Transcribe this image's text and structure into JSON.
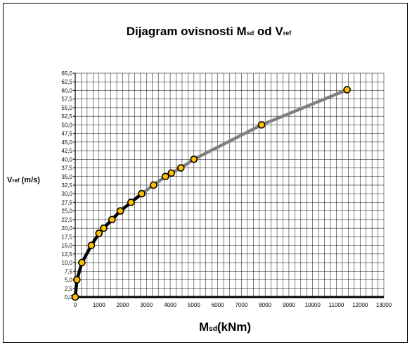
{
  "chart_data": {
    "type": "line",
    "title": {
      "prefix": "Dijagram ovisnosti M",
      "sub1": "sd",
      "middle": " od V",
      "sub2": "ref"
    },
    "xlabel": {
      "main": "M",
      "sub": "sd",
      "suffix": "(kNm)"
    },
    "ylabel": {
      "main": "V",
      "sub": "ref",
      "suffix": " (m/s)"
    },
    "xlim": [
      0,
      13000
    ],
    "ylim": [
      0,
      65
    ],
    "x_ticks": [
      "0",
      "1000",
      "2000",
      "3000",
      "4000",
      "5000",
      "6000",
      "7000",
      "8000",
      "9000",
      "10000",
      "11000",
      "12000",
      "13000"
    ],
    "y_ticks": [
      "0,0",
      "2,5",
      "5,0",
      "7,5",
      "10,0",
      "12,5",
      "15,0",
      "17,5",
      "20,0",
      "22,5",
      "25,0",
      "27,5",
      "30,0",
      "32,5",
      "35,0",
      "37,5",
      "40,0",
      "42,5",
      "45,0",
      "47,5",
      "50,0",
      "52,5",
      "55,0",
      "57,5",
      "60,0",
      "62,5",
      "65,0"
    ],
    "grid": true,
    "series": [
      {
        "x": [
          0,
          70,
          280,
          680,
          1000,
          1200,
          1550,
          1900,
          2350,
          2800
        ],
        "y": [
          0,
          5,
          10,
          15,
          18.5,
          20,
          22.5,
          25,
          27.5,
          30
        ],
        "color": "#000000",
        "marker_fill": "#FFC000"
      },
      {
        "x": [
          2800,
          3300,
          3800,
          4050,
          4450,
          5000,
          7850,
          11450
        ],
        "y": [
          30,
          32.5,
          35,
          36,
          37.5,
          40,
          50,
          60.2
        ],
        "color": "#808080",
        "marker_fill": "#FFC000"
      }
    ]
  }
}
